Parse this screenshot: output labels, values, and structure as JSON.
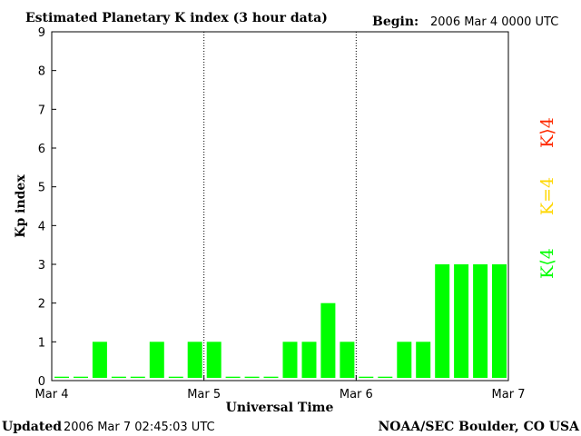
{
  "header": {
    "title": "Estimated Planetary K index (3 hour data)",
    "begin_label": "Begin:",
    "begin_value": "2006 Mar 4 0000 UTC"
  },
  "footer": {
    "updated_label": "Updated",
    "updated_value": "2006 Mar  7 02:45:03 UTC",
    "source": "NOAA/SEC Boulder, CO USA"
  },
  "legend": {
    "below": "K⟨4",
    "equal": "K=4",
    "above": "K⟩4"
  },
  "colors": {
    "below": "#00ff00",
    "equal": "#ffd700",
    "above": "#ff2a00",
    "axis": "#000000",
    "background": "#ffffff"
  },
  "chart_data": {
    "type": "bar",
    "title": "Estimated Planetary K index (3 hour data)",
    "xlabel": "Universal Time",
    "ylabel": "Kp index",
    "ylim": [
      0,
      9
    ],
    "yticks": [
      "0",
      "1",
      "2",
      "3",
      "4",
      "5",
      "6",
      "7",
      "8",
      "9"
    ],
    "xticks": [
      "Mar 4",
      "Mar 5",
      "Mar 6",
      "Mar 7"
    ],
    "day_dividers": [
      "Mar 5",
      "Mar 6"
    ],
    "grid": false,
    "values": [
      0,
      0,
      1,
      0,
      0,
      1,
      0,
      1,
      1,
      0,
      0,
      0,
      1,
      1,
      2,
      1,
      0,
      0,
      1,
      1,
      3,
      3,
      3,
      3
    ]
  }
}
